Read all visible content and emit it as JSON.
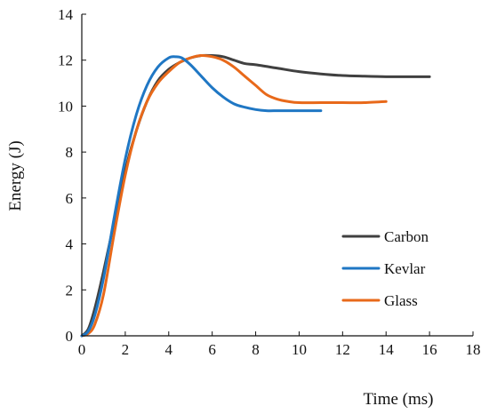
{
  "chart_data": {
    "type": "line",
    "xlabel": "Time (ms)",
    "ylabel": "Energy (J)",
    "xlim": [
      0,
      18
    ],
    "ylim": [
      0,
      14
    ],
    "xticks": [
      0,
      2,
      4,
      6,
      8,
      10,
      12,
      14,
      16,
      18
    ],
    "yticks": [
      0,
      2,
      4,
      6,
      8,
      10,
      12,
      14
    ],
    "grid": false,
    "legend_position": "bottom-right",
    "series": [
      {
        "name": "Carbon",
        "color": "#404040",
        "x": [
          0,
          0.3,
          0.6,
          1,
          1.5,
          2,
          2.5,
          3,
          3.5,
          4,
          4.5,
          5,
          5.5,
          6,
          6.5,
          7,
          7.5,
          8,
          9,
          10,
          11,
          12,
          13,
          14,
          15,
          16
        ],
        "y": [
          0,
          0.3,
          1.2,
          2.8,
          5.0,
          7.2,
          8.9,
          10.2,
          11.1,
          11.6,
          11.9,
          12.1,
          12.2,
          12.2,
          12.15,
          12.0,
          11.85,
          11.8,
          11.65,
          11.5,
          11.4,
          11.33,
          11.3,
          11.28,
          11.28,
          11.28
        ]
      },
      {
        "name": "Kevlar",
        "color": "#1f77c4",
        "x": [
          0,
          0.3,
          0.6,
          1,
          1.5,
          2,
          2.5,
          3,
          3.5,
          4,
          4.3,
          4.6,
          5,
          5.5,
          6,
          6.5,
          7,
          7.5,
          8,
          8.5,
          9,
          9.5,
          10,
          10.5,
          11
        ],
        "y": [
          0,
          0.2,
          0.9,
          2.5,
          5.2,
          7.7,
          9.6,
          10.9,
          11.7,
          12.1,
          12.15,
          12.1,
          11.8,
          11.3,
          10.8,
          10.4,
          10.1,
          9.95,
          9.85,
          9.8,
          9.8,
          9.8,
          9.8,
          9.8,
          9.8
        ]
      },
      {
        "name": "Glass",
        "color": "#e8691a",
        "x": [
          0,
          0.3,
          0.6,
          1,
          1.5,
          2,
          2.5,
          3,
          3.5,
          4,
          4.5,
          5,
          5.5,
          6,
          6.5,
          7,
          7.5,
          8,
          8.5,
          9,
          9.5,
          10,
          11,
          12,
          13,
          14
        ],
        "y": [
          0,
          0.1,
          0.5,
          1.8,
          4.5,
          7.0,
          8.9,
          10.2,
          11.0,
          11.5,
          11.9,
          12.1,
          12.2,
          12.15,
          12.0,
          11.7,
          11.3,
          10.9,
          10.5,
          10.3,
          10.2,
          10.15,
          10.15,
          10.15,
          10.15,
          10.2
        ]
      }
    ]
  }
}
